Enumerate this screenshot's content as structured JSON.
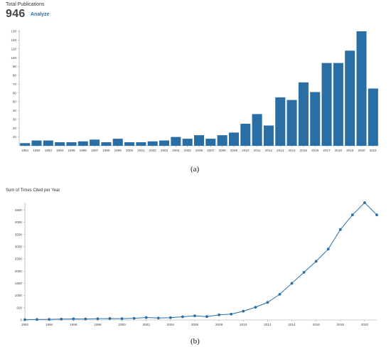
{
  "header": {
    "title": "Total Publications",
    "count": "946",
    "analyze_label": "Analyze"
  },
  "panel_labels": {
    "a": "(a)",
    "b": "(b)"
  },
  "chart_data": [
    {
      "type": "bar",
      "color": "#2a6ea6",
      "categories": [
        "1991",
        "1992",
        "1993",
        "1994",
        "1995",
        "1996",
        "1997",
        "1998",
        "1999",
        "2000",
        "2001",
        "2002",
        "2003",
        "2004",
        "2005",
        "2006",
        "2007",
        "2008",
        "2009",
        "2010",
        "2011",
        "2012",
        "2013",
        "2014",
        "2015",
        "2016",
        "2017",
        "2018",
        "2019",
        "2020",
        "2021"
      ],
      "values": [
        3,
        6,
        6,
        4,
        4,
        5,
        7,
        4,
        8,
        4,
        4,
        5,
        6,
        10,
        8,
        12,
        8,
        12,
        15,
        25,
        36,
        23,
        55,
        52,
        72,
        61,
        94,
        94,
        108,
        130,
        65
      ],
      "ylim": [
        0,
        130
      ],
      "yticks": [
        10,
        20,
        30,
        40,
        50,
        60,
        70,
        80,
        90,
        100,
        110,
        120,
        130
      ],
      "grid": false
    },
    {
      "type": "line",
      "title": "Sum of Times Cited per Year",
      "color": "#2a6ea6",
      "x": [
        1992,
        1993,
        1994,
        1995,
        1996,
        1997,
        1998,
        1999,
        2000,
        2001,
        2002,
        2003,
        2004,
        2005,
        2006,
        2007,
        2008,
        2009,
        2010,
        2011,
        2012,
        2013,
        2014,
        2015,
        2016,
        2017,
        2018,
        2019,
        2020,
        2021
      ],
      "values": [
        15,
        20,
        25,
        35,
        45,
        40,
        50,
        60,
        55,
        70,
        100,
        80,
        95,
        130,
        170,
        140,
        210,
        240,
        360,
        520,
        720,
        1050,
        1500,
        1950,
        2400,
        2900,
        3700,
        4300,
        4800,
        4300
      ],
      "xticks": [
        1992,
        1994,
        1996,
        1998,
        2000,
        2002,
        2004,
        2006,
        2008,
        2010,
        2012,
        2014,
        2016,
        2018,
        2020
      ],
      "xlim": [
        1992,
        2021
      ],
      "ylim": [
        0,
        4800
      ],
      "yticks": [
        0,
        500,
        1000,
        1500,
        2000,
        2500,
        3000,
        3500,
        4000,
        4500
      ],
      "grid": false
    }
  ]
}
